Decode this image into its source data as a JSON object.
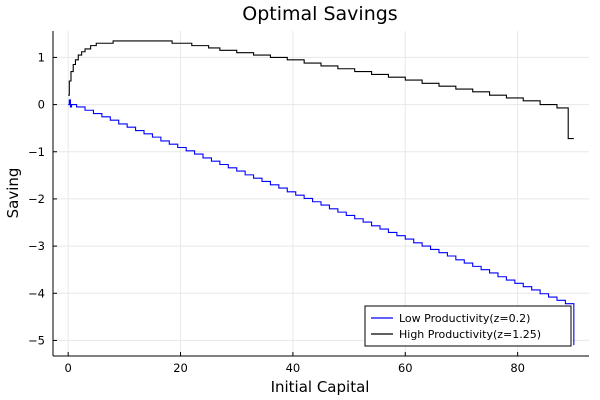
{
  "chart_data": {
    "type": "line",
    "title": "Optimal Savings",
    "xlabel": "Initial Capital",
    "ylabel": "Saving",
    "xlim": [
      -2.7,
      92.7
    ],
    "ylim": [
      -5.33,
      1.56
    ],
    "xticks": [
      0,
      20,
      40,
      60,
      80
    ],
    "yticks": [
      -5,
      -4,
      -3,
      -2,
      -1,
      0,
      1
    ],
    "xtick_labels": [
      "0",
      "20",
      "40",
      "60",
      "80"
    ],
    "ytick_labels": [
      "−5",
      "−4",
      "−3",
      "−2",
      "−1",
      "0",
      "1"
    ],
    "grid": true,
    "legend_position": "bottom-right",
    "series": [
      {
        "name": "Low Productivity(z=0.2)",
        "color": "#0000ff",
        "step": true,
        "x": [
          0,
          0.2,
          0.4,
          0.6,
          1.5,
          3,
          4.5,
          6,
          7.5,
          9,
          10.5,
          12,
          13.5,
          15,
          16.5,
          18,
          19.5,
          21,
          22.5,
          24,
          25.5,
          27,
          28.5,
          30,
          31.5,
          33,
          34.5,
          36,
          37.5,
          39,
          40.5,
          42,
          43.5,
          45,
          46.5,
          48,
          49.5,
          51,
          52.5,
          54,
          55.5,
          57,
          58.5,
          60,
          61.5,
          63,
          64.5,
          66,
          67.5,
          69,
          70.5,
          72,
          73.5,
          75,
          76.5,
          78,
          79.5,
          81,
          82.5,
          84,
          85.5,
          87,
          88.5,
          90
        ],
        "y": [
          0.0,
          0.1,
          -0.05,
          0.0,
          -0.05,
          -0.12,
          -0.19,
          -0.26,
          -0.33,
          -0.41,
          -0.48,
          -0.55,
          -0.62,
          -0.69,
          -0.77,
          -0.84,
          -0.91,
          -0.98,
          -1.05,
          -1.13,
          -1.2,
          -1.27,
          -1.34,
          -1.41,
          -1.49,
          -1.56,
          -1.63,
          -1.7,
          -1.77,
          -1.85,
          -1.92,
          -1.99,
          -2.06,
          -2.13,
          -2.21,
          -2.28,
          -2.35,
          -2.42,
          -2.49,
          -2.57,
          -2.64,
          -2.71,
          -2.78,
          -2.85,
          -2.93,
          -3.0,
          -3.07,
          -3.14,
          -3.21,
          -3.29,
          -3.36,
          -3.43,
          -3.5,
          -3.57,
          -3.65,
          -3.72,
          -3.79,
          -3.86,
          -3.93,
          -4.01,
          -4.08,
          -4.15,
          -4.22,
          -5.1
        ]
      },
      {
        "name": "High Productivity(z=1.25)",
        "color": "#000000",
        "step": true,
        "x": [
          0,
          0.2,
          0.5,
          0.9,
          1.3,
          1.8,
          2.4,
          3,
          4,
          5,
          8,
          18.5,
          22,
          25,
          27,
          30,
          33,
          36,
          39,
          42,
          45,
          48,
          51,
          54,
          57,
          60,
          63,
          66,
          69,
          72,
          75,
          78,
          81,
          84,
          87,
          89,
          90
        ],
        "y": [
          0.2,
          0.5,
          0.7,
          0.85,
          0.95,
          1.05,
          1.12,
          1.18,
          1.25,
          1.3,
          1.35,
          1.3,
          1.25,
          1.2,
          1.15,
          1.1,
          1.05,
          1.0,
          0.95,
          0.88,
          0.82,
          0.76,
          0.7,
          0.64,
          0.58,
          0.52,
          0.45,
          0.39,
          0.33,
          0.27,
          0.2,
          0.14,
          0.08,
          0.0,
          -0.07,
          -0.72,
          -0.72
        ]
      }
    ]
  }
}
